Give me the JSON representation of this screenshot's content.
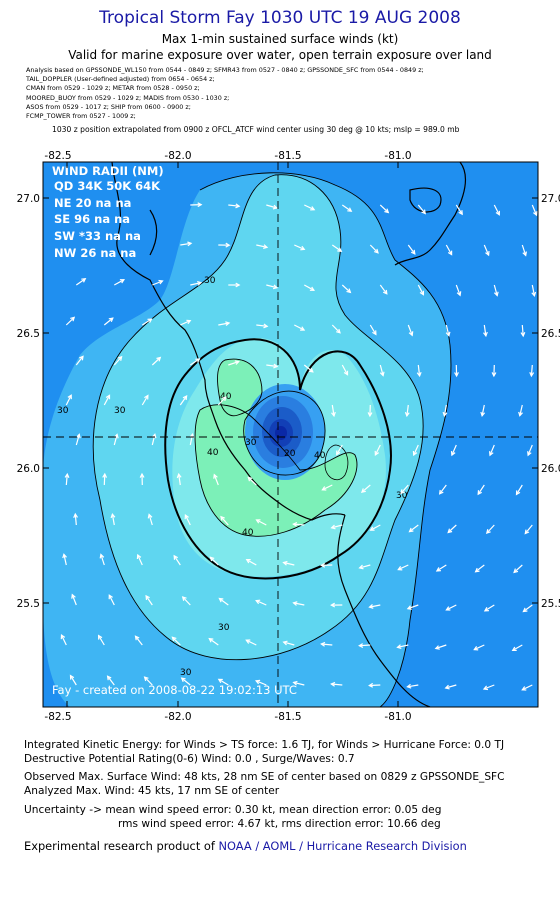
{
  "header": {
    "title": "Tropical Storm Fay 1030 UTC 19 AUG 2008",
    "subtitle1": "Max 1-min sustained surface winds (kt)",
    "subtitle2": "Valid for marine exposure over water, open terrain exposure over land"
  },
  "analysis_lines": [
    "Analysis based on  GPSSONDE_WL150 from 0544 - 0849 z;  SFMR43 from 0527 - 0840 z;  GPSSONDE_SFC from 0544 - 0849 z;",
    "TAIL_DOPPLER  (User-defined adjusted)  from 0654 - 0654 z;",
    "CMAN from 0529 - 1029 z;   METAR from 0528 - 0950 z;",
    "MOORED_BUOY from 0529 - 1029 z;   MADIS from 0530 - 1030 z;",
    "ASOS from 0529 - 1017 z;   SHIP from 0600 - 0900 z;",
    "FCMP_TOWER from 0527 - 1009 z;"
  ],
  "position_note": "1030 z position extrapolated from 0900 z OFCL_ATCF wind center using 30 deg @ 10 kts; mslp = 989.0 mb",
  "map": {
    "lon_ticks_top": [
      "-82.5",
      "-82.0",
      "-81.5",
      "-81.0"
    ],
    "lon_ticks_bottom": [
      "-82.5",
      "-82.0",
      "-81.5",
      "-81.0"
    ],
    "lat_ticks_left": [
      "27.0",
      "26.5",
      "26.0",
      "25.5"
    ],
    "lat_ticks_right": [
      "27.0",
      "26.5",
      "26.0",
      "25.5"
    ],
    "wind_radii": {
      "title": "WIND RADII (NM)",
      "header": "QD  34K  50K  64K",
      "rows": [
        "NE    20     na     na",
        "SE    96     na     na",
        "SW  *33     na     na",
        "NW   26     na     na"
      ]
    },
    "contour_labels": [
      "30",
      "30",
      "30",
      "30",
      "30",
      "40",
      "40",
      "40",
      "40",
      "30",
      "30",
      "20"
    ],
    "credit": "Fay - created on 2008-08-22 19:02:13 UTC",
    "colors": {
      "dark_blue": "#1f8ff0",
      "mid_blue": "#3fb5f3",
      "light_cyan": "#5fd6f0",
      "cyan": "#7ee8ec",
      "green": "#7cf0b8",
      "core_deep": "#0a28a6"
    }
  },
  "stats": {
    "ike": "Integrated Kinetic Energy:  for Winds > TS force: 1.6 TJ,  for Winds > Hurricane Force: 0.0 TJ",
    "dpr": "Destructive Potential Rating(0-6)   Wind: 0.0 , Surge/Waves: 0.7",
    "observed": "Observed Max. Surface Wind: 48 kts, 28 nm SE of center based on 0829 z GPSSONDE_SFC",
    "analyzed": "Analyzed Max. Wind: 45 kts, 17 nm SE of center",
    "uncert1": "Uncertainty -> mean wind speed error: 0.30 kt,   mean direction error: 0.05 deg",
    "uncert2": "rms wind speed error: 4.67 kt,   rms direction error: 10.66 deg"
  },
  "footer": {
    "prefix": "Experimental research product of",
    "org": "NOAA / AOML / Hurricane Research Division"
  }
}
